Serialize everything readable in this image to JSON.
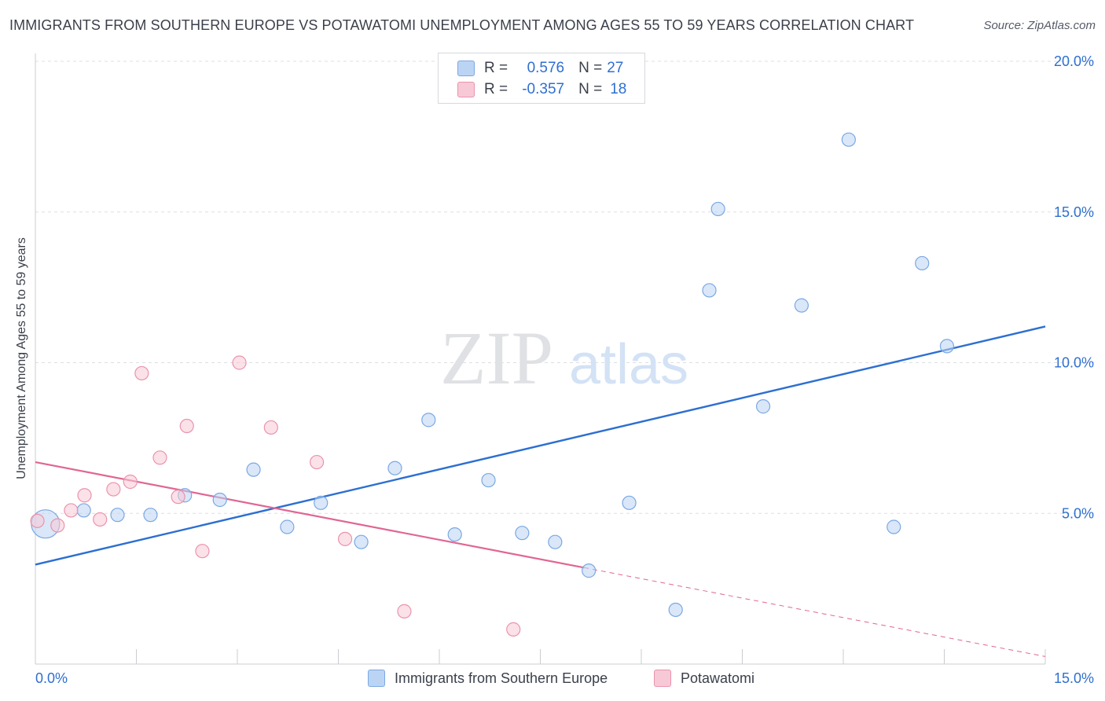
{
  "title": "IMMIGRANTS FROM SOUTHERN EUROPE VS POTAWATOMI UNEMPLOYMENT AMONG AGES 55 TO 59 YEARS CORRELATION CHART",
  "source": "Source: ZipAtlas.com",
  "watermark": {
    "zip": "ZIP",
    "atlas": "atlas"
  },
  "legend": {
    "r_label": "R =",
    "n_label": "N =",
    "rows": [
      {
        "r": "0.576",
        "n": "27"
      },
      {
        "r": "-0.357",
        "n": "18"
      }
    ]
  },
  "colors": {
    "blue_fill": "#bcd4f3",
    "blue_stroke": "#7aa8e4",
    "blue_line": "#2c6fd1",
    "pink_fill": "#f7c9d6",
    "pink_stroke": "#eb93ad",
    "pink_line": "#e06693",
    "tick_label": "#2f6fd0"
  },
  "chart_data": {
    "type": "scatter",
    "title": "IMMIGRANTS FROM SOUTHERN EUROPE VS POTAWATOMI UNEMPLOYMENT AMONG AGES 55 TO 59 YEARS CORRELATION CHART",
    "xlabel": "",
    "ylabel": "Unemployment Among Ages 55 to 59 years",
    "xlim": [
      0,
      15
    ],
    "ylim": [
      0,
      20
    ],
    "x_tick_labels": [
      "0.0%",
      "15.0%"
    ],
    "y_ticks": [
      5,
      10,
      15,
      20
    ],
    "y_tick_labels": [
      "5.0%",
      "10.0%",
      "15.0%",
      "20.0%"
    ],
    "grid": true,
    "legend_position": "top-center",
    "series": [
      {
        "name": "Immigrants from Southern Europe",
        "color": "#bcd4f3",
        "points": [
          {
            "x": 0.15,
            "y": 4.65,
            "large": true
          },
          {
            "x": 0.72,
            "y": 5.1
          },
          {
            "x": 1.22,
            "y": 4.95
          },
          {
            "x": 1.71,
            "y": 4.95
          },
          {
            "x": 2.22,
            "y": 5.6
          },
          {
            "x": 2.74,
            "y": 5.45
          },
          {
            "x": 3.24,
            "y": 6.45
          },
          {
            "x": 3.74,
            "y": 4.55
          },
          {
            "x": 4.24,
            "y": 5.35
          },
          {
            "x": 4.84,
            "y": 4.05
          },
          {
            "x": 5.34,
            "y": 6.5
          },
          {
            "x": 5.84,
            "y": 8.1
          },
          {
            "x": 6.23,
            "y": 4.3
          },
          {
            "x": 6.73,
            "y": 6.1
          },
          {
            "x": 7.23,
            "y": 4.35
          },
          {
            "x": 7.72,
            "y": 4.05
          },
          {
            "x": 8.22,
            "y": 3.1
          },
          {
            "x": 8.82,
            "y": 5.35
          },
          {
            "x": 9.51,
            "y": 1.8
          },
          {
            "x": 10.01,
            "y": 12.4
          },
          {
            "x": 10.14,
            "y": 15.1
          },
          {
            "x": 10.81,
            "y": 8.55
          },
          {
            "x": 11.38,
            "y": 11.9
          },
          {
            "x": 12.08,
            "y": 17.4
          },
          {
            "x": 12.75,
            "y": 4.55
          },
          {
            "x": 13.17,
            "y": 13.3
          },
          {
            "x": 13.54,
            "y": 10.55
          }
        ],
        "trend": {
          "x0": 0,
          "y0": 3.3,
          "x1": 15,
          "y1": 11.2
        }
      },
      {
        "name": "Potawatomi",
        "color": "#f7c9d6",
        "points": [
          {
            "x": 0.03,
            "y": 4.75
          },
          {
            "x": 0.33,
            "y": 4.6
          },
          {
            "x": 0.53,
            "y": 5.1
          },
          {
            "x": 0.73,
            "y": 5.6
          },
          {
            "x": 0.96,
            "y": 4.8
          },
          {
            "x": 1.16,
            "y": 5.8
          },
          {
            "x": 1.41,
            "y": 6.05
          },
          {
            "x": 1.58,
            "y": 9.65
          },
          {
            "x": 1.85,
            "y": 6.85
          },
          {
            "x": 2.12,
            "y": 5.55
          },
          {
            "x": 2.25,
            "y": 7.9
          },
          {
            "x": 2.48,
            "y": 3.75
          },
          {
            "x": 3.03,
            "y": 10.0
          },
          {
            "x": 3.5,
            "y": 7.85
          },
          {
            "x": 4.18,
            "y": 6.7
          },
          {
            "x": 4.6,
            "y": 4.15
          },
          {
            "x": 5.48,
            "y": 1.75
          },
          {
            "x": 7.1,
            "y": 1.15
          }
        ],
        "trend": {
          "x0": 0,
          "y0": 6.7,
          "x1": 8.15,
          "y1": 3.2
        },
        "trend_dashed": {
          "x0": 8.15,
          "y0": 3.2,
          "x1": 15,
          "y1": 0.25
        }
      }
    ]
  }
}
